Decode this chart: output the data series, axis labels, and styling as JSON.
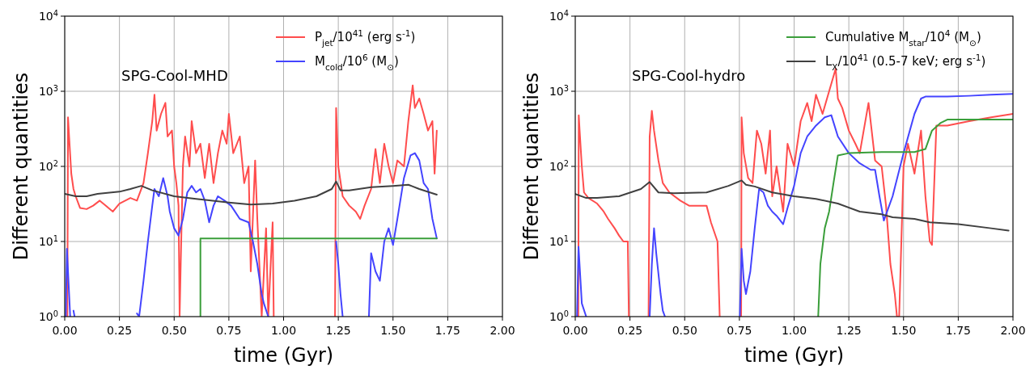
{
  "chart_data": [
    {
      "type": "line",
      "title": "SPG-Cool-MHD",
      "xlabel": "time (Gyr)",
      "ylabel": "Different quantities",
      "log": "y",
      "grid": true,
      "legend": "top right",
      "xlim": [
        0,
        2
      ],
      "ylim": [
        1,
        10000
      ],
      "xticks": [
        {
          "value": 0,
          "label": "0.00"
        },
        {
          "value": 0.25,
          "label": "0.25"
        },
        {
          "value": 0.5,
          "label": "0.50"
        },
        {
          "value": 0.75,
          "label": "0.75"
        },
        {
          "value": 1,
          "label": "1.00"
        },
        {
          "value": 1.25,
          "label": "1.25"
        },
        {
          "value": 1.5,
          "label": "1.50"
        },
        {
          "value": 1.75,
          "label": "1.75"
        },
        {
          "value": 2,
          "label": "2.00"
        }
      ],
      "yticks": [
        {
          "value": 1,
          "label": "10$^{0}$"
        },
        {
          "value": 10,
          "label": "10$^{1}$"
        },
        {
          "value": 100,
          "label": "10$^{2}$"
        },
        {
          "value": 1000,
          "label": "10$^{3}$"
        },
        {
          "value": 10000,
          "label": "10$^{4}$"
        }
      ],
      "series": [
        {
          "name": "P$_{jet}$/10$^{41}$ (erg s$^{-1}$)",
          "color": "#ff4d4d",
          "x": [
            0.012,
            0.015,
            0.02,
            0.03,
            0.04,
            0.05,
            0.07,
            0.1,
            0.13,
            0.16,
            0.2,
            0.22,
            0.25,
            0.3,
            0.33,
            0.36,
            0.38,
            0.4,
            0.41,
            0.42,
            0.44,
            0.46,
            0.47,
            0.49,
            0.5,
            0.51,
            0.52,
            0.525,
            0.53,
            0.54,
            0.55,
            0.57,
            0.58,
            0.6,
            0.62,
            0.64,
            0.66,
            0.68,
            0.7,
            0.72,
            0.74,
            0.75,
            0.77,
            0.8,
            0.82,
            0.84,
            0.85,
            0.87,
            0.88,
            0.9,
            0.92,
            0.93,
            0.95,
            0.955,
            1.0,
            1.235,
            1.24,
            1.25,
            1.27,
            1.3,
            1.33,
            1.35,
            1.37,
            1.4,
            1.42,
            1.44,
            1.46,
            1.48,
            1.5,
            1.52,
            1.55,
            1.57,
            1.59,
            1.6,
            1.62,
            1.64,
            1.66,
            1.68,
            1.69,
            1.7
          ],
          "values": [
            1,
            450,
            250,
            80,
            50,
            40,
            28,
            27,
            30,
            35,
            28,
            25,
            32,
            38,
            35,
            60,
            150,
            400,
            900,
            300,
            500,
            700,
            250,
            300,
            100,
            60,
            30,
            1,
            5,
            100,
            250,
            100,
            400,
            150,
            200,
            70,
            200,
            60,
            150,
            300,
            200,
            500,
            150,
            250,
            60,
            100,
            4,
            120,
            20,
            1,
            15,
            1,
            18,
            1,
            null,
            1,
            600,
            100,
            40,
            30,
            25,
            20,
            30,
            50,
            170,
            60,
            200,
            100,
            60,
            120,
            100,
            400,
            1200,
            600,
            800,
            500,
            300,
            400,
            80,
            300
          ]
        },
        {
          "name": "M$_{cold}$/10$^{6}$ (M$_{⊙}$)",
          "color": "#4444ff",
          "x": [
            0.005,
            0.01,
            0.02,
            0.025,
            0.03,
            0.04,
            0.045,
            0.2,
            0.33,
            0.34,
            0.36,
            0.38,
            0.4,
            0.41,
            0.43,
            0.45,
            0.47,
            0.48,
            0.5,
            0.52,
            0.54,
            0.56,
            0.58,
            0.6,
            0.62,
            0.64,
            0.66,
            0.68,
            0.7,
            0.73,
            0.76,
            0.8,
            0.84,
            0.86,
            0.88,
            0.9,
            0.91,
            0.93,
            1.1,
            1.24,
            1.25,
            1.26,
            1.27,
            1.3,
            1.39,
            1.4,
            1.42,
            1.44,
            1.46,
            1.48,
            1.5,
            1.52,
            1.55,
            1.58,
            1.6,
            1.62,
            1.64,
            1.66,
            1.68,
            1.7
          ],
          "values": [
            1,
            8,
            2,
            1,
            null,
            1.2,
            1,
            null,
            1.1,
            1,
            3,
            10,
            30,
            50,
            40,
            70,
            40,
            25,
            15,
            12,
            20,
            45,
            55,
            45,
            50,
            35,
            18,
            30,
            40,
            35,
            30,
            20,
            18,
            10,
            5,
            2,
            1.5,
            1,
            null,
            10,
            5,
            2,
            1,
            null,
            1,
            7,
            4,
            3,
            10,
            15,
            9,
            20,
            70,
            140,
            150,
            120,
            60,
            50,
            20,
            11
          ]
        },
        {
          "color": "#3a9e3a",
          "x": [
            0.62,
            0.62,
            1.7
          ],
          "values": [
            1,
            11,
            11
          ]
        },
        {
          "color": "#404040",
          "x": [
            0,
            0.05,
            0.1,
            0.15,
            0.25,
            0.3,
            0.35,
            0.4,
            0.5,
            0.6,
            0.75,
            0.85,
            0.95,
            1.05,
            1.15,
            1.22,
            1.24,
            1.26,
            1.3,
            1.4,
            1.5,
            1.57,
            1.62,
            1.7
          ],
          "values": [
            43,
            40,
            40,
            43,
            46,
            50,
            55,
            48,
            40,
            37,
            33,
            31,
            32,
            35,
            40,
            50,
            63,
            48,
            48,
            53,
            55,
            57,
            50,
            42
          ]
        }
      ]
    },
    {
      "type": "line",
      "title": "SPG-Cool-hydro",
      "xlabel": "time (Gyr)",
      "ylabel": "Different quantities",
      "log": "y",
      "grid": true,
      "legend": "top right",
      "xlim": [
        0,
        2
      ],
      "ylim": [
        1,
        10000
      ],
      "xticks": [
        {
          "value": 0,
          "label": "0.00"
        },
        {
          "value": 0.25,
          "label": "0.25"
        },
        {
          "value": 0.5,
          "label": "0.50"
        },
        {
          "value": 0.75,
          "label": "0.75"
        },
        {
          "value": 1,
          "label": "1.00"
        },
        {
          "value": 1.25,
          "label": "1.25"
        },
        {
          "value": 1.5,
          "label": "1.50"
        },
        {
          "value": 1.75,
          "label": "1.75"
        },
        {
          "value": 2,
          "label": "2.00"
        }
      ],
      "yticks": [
        {
          "value": 1,
          "label": "10$^{0}$"
        },
        {
          "value": 10,
          "label": "10$^{1}$"
        },
        {
          "value": 100,
          "label": "10$^{2}$"
        },
        {
          "value": 1000,
          "label": "10$^{3}$"
        },
        {
          "value": 10000,
          "label": "10$^{4}$"
        }
      ],
      "series": [
        {
          "color": "#ff4d4d",
          "x": [
            0.014,
            0.016,
            0.02,
            0.03,
            0.04,
            0.06,
            0.1,
            0.13,
            0.15,
            0.18,
            0.2,
            0.22,
            0.24,
            0.245,
            0.3,
            0.335,
            0.34,
            0.35,
            0.36,
            0.38,
            0.4,
            0.43,
            0.48,
            0.52,
            0.58,
            0.6,
            0.62,
            0.65,
            0.66,
            0.7,
            0.758,
            0.76,
            0.77,
            0.79,
            0.81,
            0.83,
            0.85,
            0.87,
            0.89,
            0.9,
            0.92,
            0.95,
            0.97,
            1.0,
            1.03,
            1.06,
            1.08,
            1.1,
            1.13,
            1.16,
            1.19,
            1.2,
            1.22,
            1.25,
            1.28,
            1.3,
            1.34,
            1.37,
            1.4,
            1.42,
            1.44,
            1.46,
            1.47,
            1.48,
            1.5,
            1.52,
            1.55,
            1.58,
            1.6,
            1.62,
            1.63,
            1.65,
            1.7,
            1.8,
            1.9,
            2.0
          ],
          "values": [
            1,
            480,
            300,
            100,
            45,
            38,
            32,
            25,
            20,
            15,
            12,
            10,
            10,
            1,
            null,
            1,
            250,
            550,
            300,
            120,
            60,
            45,
            35,
            30,
            30,
            30,
            18,
            10,
            1,
            null,
            1,
            450,
            150,
            70,
            60,
            300,
            200,
            80,
            300,
            40,
            100,
            25,
            200,
            100,
            400,
            700,
            400,
            900,
            500,
            1000,
            2000,
            800,
            600,
            300,
            200,
            150,
            700,
            120,
            100,
            30,
            5,
            2,
            1,
            1,
            100,
            200,
            80,
            300,
            40,
            10,
            9,
            350,
            350,
            400,
            450,
            500
          ]
        },
        {
          "color": "#4444ff",
          "x": [
            0.008,
            0.015,
            0.03,
            0.05,
            0.2,
            0.34,
            0.35,
            0.36,
            0.37,
            0.39,
            0.4,
            0.41,
            0.6,
            0.752,
            0.76,
            0.77,
            0.78,
            0.8,
            0.82,
            0.84,
            0.86,
            0.88,
            0.9,
            0.92,
            0.95,
            0.97,
            1.0,
            1.03,
            1.06,
            1.1,
            1.14,
            1.17,
            1.2,
            1.25,
            1.3,
            1.35,
            1.37,
            1.39,
            1.41,
            1.45,
            1.5,
            1.55,
            1.58,
            1.6,
            1.7,
            1.8,
            1.9,
            2.0
          ],
          "values": [
            1,
            8.5,
            1.5,
            1,
            null,
            1,
            5,
            15,
            7,
            2,
            1.2,
            1,
            null,
            1,
            8,
            3,
            2,
            4,
            15,
            50,
            45,
            30,
            25,
            22,
            17,
            28,
            55,
            150,
            250,
            350,
            450,
            480,
            250,
            150,
            110,
            90,
            90,
            40,
            19,
            40,
            150,
            500,
            800,
            850,
            850,
            870,
            900,
            920
          ]
        },
        {
          "name": "Cumulative M$_{star}$/10$^{4}$ (M$_{⊙}$)",
          "color": "#3a9e3a",
          "x": [
            1.11,
            1.12,
            1.14,
            1.16,
            1.18,
            1.2,
            1.25,
            1.4,
            1.55,
            1.6,
            1.63,
            1.67,
            1.7,
            2.0
          ],
          "values": [
            1,
            5,
            15,
            25,
            60,
            140,
            150,
            155,
            155,
            170,
            300,
            380,
            420,
            420
          ]
        },
        {
          "name": "L$_{X}$/10$^{41}$ (0.5-7 keV; erg s$^{-1}$)",
          "color": "#404040",
          "x": [
            0,
            0.05,
            0.1,
            0.2,
            0.3,
            0.34,
            0.38,
            0.45,
            0.6,
            0.7,
            0.76,
            0.78,
            0.82,
            0.9,
            1.0,
            1.1,
            1.2,
            1.3,
            1.4,
            1.45,
            1.55,
            1.62,
            1.75,
            1.9,
            1.98
          ],
          "values": [
            43,
            38,
            38,
            40,
            50,
            62,
            45,
            44,
            45,
            55,
            65,
            57,
            54,
            45,
            40,
            37,
            32,
            25,
            23,
            21,
            20,
            18,
            17,
            15,
            14
          ]
        }
      ]
    }
  ]
}
